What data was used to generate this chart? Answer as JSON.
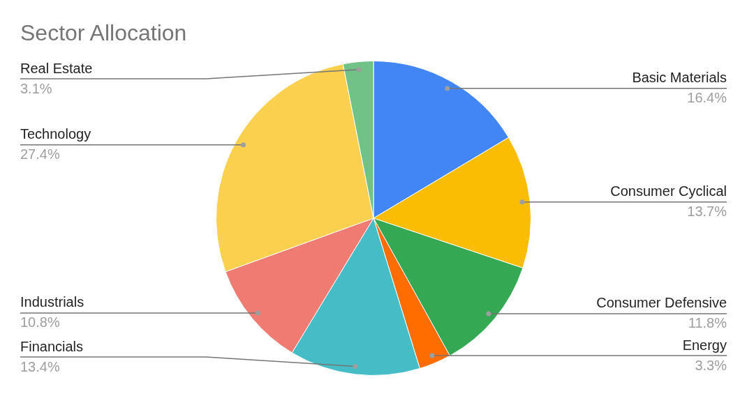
{
  "chart_data": {
    "type": "pie",
    "title": "Sector Allocation",
    "categories": [
      "Basic Materials",
      "Consumer Cyclical",
      "Consumer Defensive",
      "Energy",
      "Financials",
      "Industrials",
      "Technology",
      "Real Estate"
    ],
    "values": [
      16.4,
      13.7,
      11.8,
      3.3,
      13.4,
      10.8,
      27.4,
      3.1
    ],
    "colors": [
      "#4285f4",
      "#fbbc04",
      "#34a853",
      "#ff6d01",
      "#46bdc6",
      "#f07b72",
      "#fcd04f",
      "#71c287"
    ],
    "value_labels": [
      "16.4%",
      "13.7%",
      "11.8%",
      "3.3%",
      "13.4%",
      "10.8%",
      "27.4%",
      "3.1%"
    ],
    "legend": false
  }
}
